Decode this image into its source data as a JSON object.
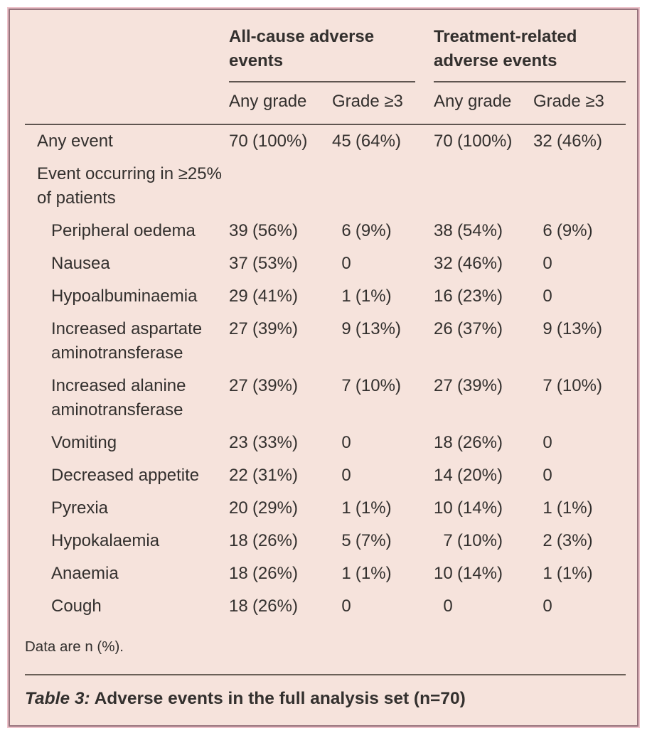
{
  "table": {
    "caption": {
      "label": "Table 3:",
      "text": " Adverse events in the full analysis set (n=70)"
    },
    "footnote": "Data are n (%).",
    "column_groups": [
      {
        "label": "All-cause adverse events"
      },
      {
        "label": "Treatment-related adverse events"
      }
    ],
    "sub_headers": [
      "Any grade",
      "Grade ≥3",
      "Any grade",
      "Grade ≥3"
    ],
    "rows": [
      {
        "label": "Any event",
        "indent": false,
        "section": false,
        "cells": [
          {
            "n": "70",
            "p": "(100%)"
          },
          {
            "n": "45",
            "p": "(64%)"
          },
          {
            "n": "70",
            "p": "(100%)"
          },
          {
            "n": "32",
            "p": "(46%)"
          }
        ]
      },
      {
        "label": "Event occurring in ≥25% of patients",
        "indent": false,
        "section": true,
        "cells": []
      },
      {
        "label": "Peripheral oedema",
        "indent": true,
        "section": false,
        "cells": [
          {
            "n": "39",
            "p": "(56%)"
          },
          {
            "n": "6",
            "p": "(9%)"
          },
          {
            "n": "38",
            "p": "(54%)"
          },
          {
            "n": "6",
            "p": "(9%)"
          }
        ]
      },
      {
        "label": "Nausea",
        "indent": true,
        "section": false,
        "cells": [
          {
            "n": "37",
            "p": "(53%)"
          },
          {
            "n": "0",
            "p": ""
          },
          {
            "n": "32",
            "p": "(46%)"
          },
          {
            "n": "0",
            "p": ""
          }
        ]
      },
      {
        "label": "Hypoalbuminaemia",
        "indent": true,
        "section": false,
        "cells": [
          {
            "n": "29",
            "p": "(41%)"
          },
          {
            "n": "1",
            "p": "(1%)"
          },
          {
            "n": "16",
            "p": "(23%)"
          },
          {
            "n": "0",
            "p": ""
          }
        ]
      },
      {
        "label": "Increased aspartate aminotransferase",
        "indent": true,
        "section": false,
        "cells": [
          {
            "n": "27",
            "p": "(39%)"
          },
          {
            "n": "9",
            "p": "(13%)"
          },
          {
            "n": "26",
            "p": "(37%)"
          },
          {
            "n": "9",
            "p": "(13%)"
          }
        ]
      },
      {
        "label": "Increased alanine aminotransferase",
        "indent": true,
        "section": false,
        "cells": [
          {
            "n": "27",
            "p": "(39%)"
          },
          {
            "n": "7",
            "p": "(10%)"
          },
          {
            "n": "27",
            "p": "(39%)"
          },
          {
            "n": "7",
            "p": "(10%)"
          }
        ]
      },
      {
        "label": "Vomiting",
        "indent": true,
        "section": false,
        "cells": [
          {
            "n": "23",
            "p": "(33%)"
          },
          {
            "n": "0",
            "p": ""
          },
          {
            "n": "18",
            "p": "(26%)"
          },
          {
            "n": "0",
            "p": ""
          }
        ]
      },
      {
        "label": "Decreased appetite",
        "indent": true,
        "section": false,
        "cells": [
          {
            "n": "22",
            "p": "(31%)"
          },
          {
            "n": "0",
            "p": ""
          },
          {
            "n": "14",
            "p": "(20%)"
          },
          {
            "n": "0",
            "p": ""
          }
        ]
      },
      {
        "label": "Pyrexia",
        "indent": true,
        "section": false,
        "cells": [
          {
            "n": "20",
            "p": "(29%)"
          },
          {
            "n": "1",
            "p": "(1%)"
          },
          {
            "n": "10",
            "p": "(14%)"
          },
          {
            "n": "1",
            "p": "(1%)"
          }
        ]
      },
      {
        "label": "Hypokalaemia",
        "indent": true,
        "section": false,
        "cells": [
          {
            "n": "18",
            "p": "(26%)"
          },
          {
            "n": "5",
            "p": "(7%)"
          },
          {
            "n": "7",
            "p": "(10%)"
          },
          {
            "n": "2",
            "p": "(3%)"
          }
        ]
      },
      {
        "label": "Anaemia",
        "indent": true,
        "section": false,
        "cells": [
          {
            "n": "18",
            "p": "(26%)"
          },
          {
            "n": "1",
            "p": "(1%)"
          },
          {
            "n": "10",
            "p": "(14%)"
          },
          {
            "n": "1",
            "p": "(1%)"
          }
        ]
      },
      {
        "label": "Cough",
        "indent": true,
        "section": false,
        "cells": [
          {
            "n": "18",
            "p": "(26%)"
          },
          {
            "n": "0",
            "p": ""
          },
          {
            "n": "0",
            "p": ""
          },
          {
            "n": "0",
            "p": ""
          }
        ]
      }
    ],
    "colors": {
      "background": "#f6e3dc",
      "border_inner": "#97737c",
      "border_outer": "#eec3cb",
      "rule": "#5f5550",
      "text": "#33302e"
    }
  }
}
